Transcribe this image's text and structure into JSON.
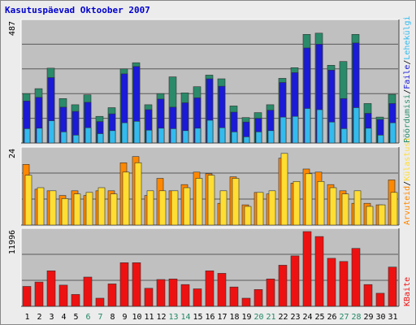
{
  "title": "Kasutuspäevad Oktoober 2007",
  "colors": {
    "background": "#ececec",
    "plot_bg": "#c0c0c0",
    "title": "#0000cc",
    "grid": "#5a5a5a",
    "hits": "#2a8a6a",
    "files": "#1a1ad8",
    "pages": "#33bbee",
    "visits": "#ff8800",
    "sites": "#ffdd33",
    "kbytes": "#ee1111",
    "tick_weekday": "#000000",
    "tick_weekend": "#228866"
  },
  "chart_data": [
    {
      "type": "bar",
      "categories": [
        "1",
        "2",
        "3",
        "4",
        "5",
        "6",
        "7",
        "8",
        "9",
        "10",
        "11",
        "12",
        "13",
        "14",
        "15",
        "16",
        "17",
        "18",
        "19",
        "20",
        "21",
        "22",
        "23",
        "24",
        "25",
        "26",
        "27",
        "28",
        "29",
        "30",
        "31"
      ],
      "weekend_categories": [
        "6",
        "7",
        "13",
        "14",
        "20",
        "21",
        "27",
        "28"
      ],
      "ylim": [
        0,
        487
      ],
      "tick_label": "487",
      "legend": [
        "Pöördumisi",
        "Faile",
        "Lehekülgi"
      ],
      "series": [
        {
          "name": "Pöördumisi",
          "values": [
            200,
            220,
            303,
            180,
            155,
            195,
            108,
            143,
            300,
            325,
            155,
            200,
            268,
            203,
            228,
            275,
            260,
            150,
            103,
            123,
            155,
            262,
            305,
            440,
            445,
            315,
            330,
            440,
            160,
            105,
            197
          ]
        },
        {
          "name": "Faile",
          "values": [
            170,
            185,
            265,
            145,
            128,
            165,
            87,
            118,
            280,
            310,
            135,
            178,
            145,
            163,
            183,
            260,
            230,
            125,
            85,
            100,
            133,
            245,
            285,
            385,
            400,
            295,
            180,
            405,
            120,
            95,
            160
          ]
        },
        {
          "name": "Lehekülgi",
          "values": [
            58,
            60,
            90,
            45,
            32,
            62,
            38,
            50,
            82,
            88,
            52,
            60,
            58,
            50,
            60,
            92,
            62,
            45,
            25,
            45,
            50,
            105,
            108,
            140,
            135,
            85,
            58,
            143,
            60,
            32,
            82
          ]
        }
      ]
    },
    {
      "type": "bar",
      "categories": [
        "1",
        "2",
        "3",
        "4",
        "5",
        "6",
        "7",
        "8",
        "9",
        "10",
        "11",
        "12",
        "13",
        "14",
        "15",
        "16",
        "17",
        "18",
        "19",
        "20",
        "21",
        "22",
        "23",
        "24",
        "25",
        "26",
        "27",
        "28",
        "29",
        "30",
        "31"
      ],
      "ylim": [
        0,
        24
      ],
      "tick_label": "24",
      "legend": [
        "Arvuteid",
        "Külastusi"
      ],
      "series": [
        {
          "name": "Arvuteid",
          "values": [
            19.5,
            11.5,
            11,
            9.5,
            11,
            9.5,
            11,
            11,
            20,
            22,
            9.5,
            15,
            11,
            13,
            17,
            16.5,
            7,
            15.5,
            6.5,
            10.5,
            10,
            21.5,
            13.5,
            18,
            17,
            13,
            11,
            7,
            7,
            6.5,
            14.5
          ]
        },
        {
          "name": "Külastusi",
          "values": [
            16,
            12,
            11,
            8.5,
            10,
            10.5,
            12,
            10,
            17,
            20,
            11,
            11,
            11,
            12,
            15,
            16,
            11,
            15,
            6,
            10.5,
            11,
            23,
            14,
            16.5,
            14,
            12,
            10,
            11,
            6,
            6.5,
            10.5
          ]
        }
      ]
    },
    {
      "type": "bar",
      "categories": [
        "1",
        "2",
        "3",
        "4",
        "5",
        "6",
        "7",
        "8",
        "9",
        "10",
        "11",
        "12",
        "13",
        "14",
        "15",
        "16",
        "17",
        "18",
        "19",
        "20",
        "21",
        "22",
        "23",
        "24",
        "25",
        "26",
        "27",
        "28",
        "29",
        "30",
        "31"
      ],
      "ylim": [
        0,
        11996
      ],
      "tick_label": "11996",
      "legend": [
        "KBaite"
      ],
      "series": [
        {
          "name": "KBaite",
          "values": [
            3200,
            3900,
            5700,
            3400,
            1900,
            4700,
            1300,
            3600,
            7000,
            7000,
            2900,
            4300,
            4400,
            3500,
            2800,
            5700,
            5300,
            3100,
            1300,
            2700,
            4400,
            6600,
            8100,
            12000,
            11200,
            7700,
            7200,
            9300,
            3500,
            2100,
            6300
          ]
        }
      ]
    }
  ]
}
